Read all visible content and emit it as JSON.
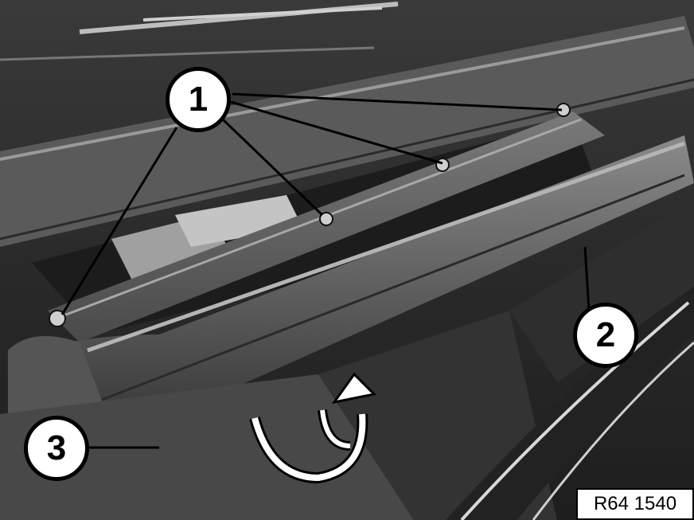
{
  "figure": {
    "callouts": [
      {
        "number": "1"
      },
      {
        "number": "2"
      },
      {
        "number": "3"
      }
    ],
    "reference_code": "R64 1540"
  }
}
